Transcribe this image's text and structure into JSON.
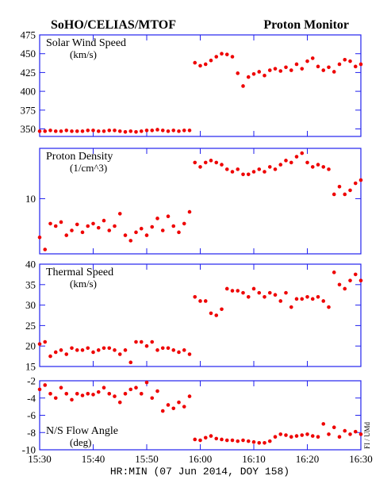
{
  "header": {
    "left": "SoHO/CELIAS/MTOF",
    "right": "Proton Monitor"
  },
  "x_label": "HR:MIN (07 Jun 2014, DOY 158)",
  "credit": "FI / UMd",
  "chart_data": [
    {
      "type": "scatter",
      "title": "Solar Wind Speed",
      "subtitle": "(km/s)",
      "color": "#ee0000",
      "ylim": [
        340,
        475
      ],
      "yticks": [
        350,
        375,
        400,
        425,
        450,
        475
      ],
      "x": [
        "15:30",
        "15:31",
        "15:32",
        "15:33",
        "15:34",
        "15:35",
        "15:36",
        "15:37",
        "15:38",
        "15:39",
        "15:40",
        "15:41",
        "15:42",
        "15:43",
        "15:44",
        "15:45",
        "15:46",
        "15:47",
        "15:48",
        "15:49",
        "15:50",
        "15:51",
        "15:52",
        "15:53",
        "15:54",
        "15:55",
        "15:56",
        "15:57",
        "15:58",
        "15:59",
        "16:00",
        "16:01",
        "16:02",
        "16:03",
        "16:04",
        "16:05",
        "16:06",
        "16:07",
        "16:08",
        "16:09",
        "16:10",
        "16:11",
        "16:12",
        "16:13",
        "16:14",
        "16:15",
        "16:16",
        "16:17",
        "16:18",
        "16:19",
        "16:20",
        "16:21",
        "16:22",
        "16:23",
        "16:24",
        "16:25",
        "16:26",
        "16:27",
        "16:28",
        "16:29",
        "16:30"
      ],
      "values": [
        347,
        347,
        348,
        347,
        347,
        348,
        347,
        347,
        347,
        348,
        348,
        347,
        347,
        348,
        348,
        347,
        346,
        347,
        346,
        347,
        348,
        348,
        349,
        348,
        347,
        348,
        347,
        348,
        348,
        438,
        434,
        436,
        441,
        446,
        450,
        449,
        446,
        424,
        407,
        419,
        423,
        426,
        421,
        428,
        430,
        427,
        432,
        428,
        436,
        430,
        440,
        444,
        433,
        428,
        432,
        426,
        436,
        442,
        440,
        433,
        436
      ]
    },
    {
      "type": "scatter",
      "title": "Proton Density",
      "subtitle": "(1/cm^3)",
      "color": "#ee0000",
      "log": true,
      "ylim": [
        3,
        30
      ],
      "yticks": [
        10
      ],
      "x": [
        "15:30",
        "15:31",
        "15:32",
        "15:33",
        "15:34",
        "15:35",
        "15:36",
        "15:37",
        "15:38",
        "15:39",
        "15:40",
        "15:41",
        "15:42",
        "15:43",
        "15:44",
        "15:45",
        "15:46",
        "15:47",
        "15:48",
        "15:49",
        "15:50",
        "15:51",
        "15:52",
        "15:53",
        "15:54",
        "15:55",
        "15:56",
        "15:57",
        "15:58",
        "15:59",
        "16:00",
        "16:01",
        "16:02",
        "16:03",
        "16:04",
        "16:05",
        "16:06",
        "16:07",
        "16:08",
        "16:09",
        "16:10",
        "16:11",
        "16:12",
        "16:13",
        "16:14",
        "16:15",
        "16:16",
        "16:17",
        "16:18",
        "16:19",
        "16:20",
        "16:21",
        "16:22",
        "16:23",
        "16:24",
        "16:25",
        "16:26",
        "16:27",
        "16:28",
        "16:29",
        "16:30"
      ],
      "values": [
        4.3,
        3.3,
        5.8,
        5.5,
        6.0,
        4.5,
        5.0,
        5.7,
        4.8,
        5.5,
        5.8,
        5.3,
        6.2,
        5.0,
        5.5,
        7.2,
        4.5,
        4.0,
        4.8,
        5.2,
        4.5,
        5.4,
        6.5,
        5.0,
        6.8,
        5.5,
        4.8,
        5.8,
        7.5,
        22,
        20,
        22,
        23,
        22,
        21,
        19,
        18,
        19,
        17,
        17,
        18,
        19,
        18,
        20,
        19,
        21,
        23,
        22,
        25,
        27,
        22,
        20,
        21,
        20,
        19,
        11,
        13,
        11,
        12,
        14,
        15
      ]
    },
    {
      "type": "scatter",
      "title": "Thermal Speed",
      "subtitle": "(km/s)",
      "color": "#ee0000",
      "ylim": [
        15,
        40
      ],
      "yticks": [
        15,
        20,
        25,
        30,
        35,
        40
      ],
      "x": [
        "15:30",
        "15:31",
        "15:32",
        "15:33",
        "15:34",
        "15:35",
        "15:36",
        "15:37",
        "15:38",
        "15:39",
        "15:40",
        "15:41",
        "15:42",
        "15:43",
        "15:44",
        "15:45",
        "15:46",
        "15:47",
        "15:48",
        "15:49",
        "15:50",
        "15:51",
        "15:52",
        "15:53",
        "15:54",
        "15:55",
        "15:56",
        "15:57",
        "15:58",
        "15:59",
        "16:00",
        "16:01",
        "16:02",
        "16:03",
        "16:04",
        "16:05",
        "16:06",
        "16:07",
        "16:08",
        "16:09",
        "16:10",
        "16:11",
        "16:12",
        "16:13",
        "16:14",
        "16:15",
        "16:16",
        "16:17",
        "16:18",
        "16:19",
        "16:20",
        "16:21",
        "16:22",
        "16:23",
        "16:24",
        "16:25",
        "16:26",
        "16:27",
        "16:28",
        "16:29",
        "16:30"
      ],
      "values": [
        20.5,
        21,
        17.5,
        18.5,
        19,
        18,
        19.5,
        19,
        19,
        19.5,
        18.5,
        19,
        19.5,
        19.5,
        19,
        18,
        19,
        16,
        21,
        21,
        20,
        21,
        19,
        19.5,
        19.5,
        19,
        18.5,
        19,
        18,
        32,
        31,
        31,
        28,
        27.5,
        29,
        34,
        33.5,
        33.5,
        33,
        32,
        34,
        33,
        32,
        33,
        32.5,
        31,
        33,
        29.5,
        31.5,
        31.5,
        32,
        31.5,
        32,
        31,
        29.5,
        38,
        35,
        34,
        36,
        37.5,
        36
      ]
    },
    {
      "type": "scatter",
      "title": "N/S Flow Angle",
      "subtitle": "(deg)",
      "color": "#ee0000",
      "ylim": [
        -10,
        -2
      ],
      "yticks": [
        -10,
        -8,
        -6,
        -4,
        -2
      ],
      "xlim": [
        "15:30",
        "16:30"
      ],
      "xticks": [
        "15:30",
        "15:40",
        "15:50",
        "16:00",
        "16:10",
        "16:20",
        "16:30"
      ],
      "x": [
        "15:30",
        "15:31",
        "15:32",
        "15:33",
        "15:34",
        "15:35",
        "15:36",
        "15:37",
        "15:38",
        "15:39",
        "15:40",
        "15:41",
        "15:42",
        "15:43",
        "15:44",
        "15:45",
        "15:46",
        "15:47",
        "15:48",
        "15:49",
        "15:50",
        "15:51",
        "15:52",
        "15:53",
        "15:54",
        "15:55",
        "15:56",
        "15:57",
        "15:58",
        "15:59",
        "16:00",
        "16:01",
        "16:02",
        "16:03",
        "16:04",
        "16:05",
        "16:06",
        "16:07",
        "16:08",
        "16:09",
        "16:10",
        "16:11",
        "16:12",
        "16:13",
        "16:14",
        "16:15",
        "16:16",
        "16:17",
        "16:18",
        "16:19",
        "16:20",
        "16:21",
        "16:22",
        "16:23",
        "16:24",
        "16:25",
        "16:26",
        "16:27",
        "16:28",
        "16:29",
        "16:30"
      ],
      "values": [
        -3,
        -2.5,
        -3.5,
        -4,
        -2.8,
        -3.5,
        -4.2,
        -3.5,
        -3.7,
        -3.5,
        -3.6,
        -3.3,
        -2.8,
        -3.5,
        -3.8,
        -4.5,
        -3.5,
        -3,
        -2.8,
        -3.5,
        -2.2,
        -4,
        -3.2,
        -5.5,
        -4.8,
        -5.2,
        -4.5,
        -5,
        -3.8,
        -8.8,
        -8.9,
        -8.6,
        -8.4,
        -8.7,
        -8.8,
        -8.9,
        -8.9,
        -9,
        -8.9,
        -9,
        -9.1,
        -9.2,
        -9.2,
        -9,
        -8.5,
        -8.2,
        -8.3,
        -8.5,
        -8.4,
        -8.3,
        -8.2,
        -8.4,
        -8.5,
        -7,
        -8.2,
        -7.4,
        -8.5,
        -7.8,
        -8.2,
        -7.9,
        -8.2
      ]
    }
  ]
}
